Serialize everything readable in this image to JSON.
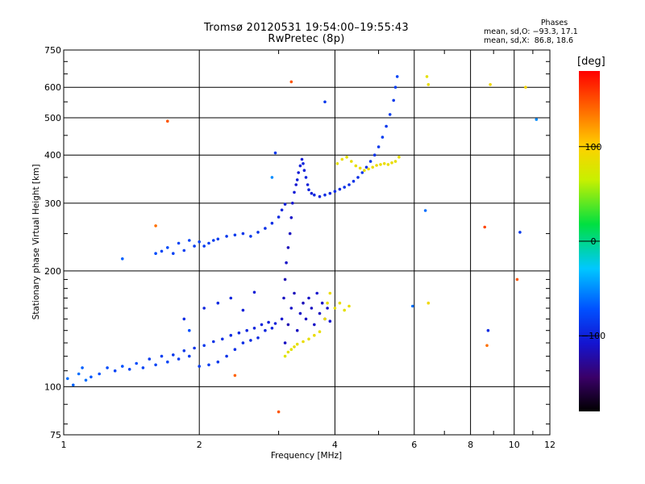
{
  "header": {
    "title_line1": "Tromsø 20120531 19:54:00–19:55:43",
    "title_line2": "RwPretec (8p)"
  },
  "phases_box": {
    "title": "Phases",
    "line_o": "mean, sd,O: −93.3, 17.1",
    "line_x": "mean, sd,X:  86.8, 18.6"
  },
  "colorbar": {
    "unit_label": "[deg]",
    "ticks": [
      {
        "value": 100,
        "label": "100"
      },
      {
        "value": 0,
        "label": "0"
      },
      {
        "value": -100,
        "label": "−100"
      }
    ],
    "range": [
      -180,
      180
    ]
  },
  "chart_data": {
    "type": "scatter",
    "xlabel": "Frequency [MHz]",
    "ylabel": "Stationary phase Virtual Height [km]",
    "x_scale": "log",
    "y_scale": "log",
    "xlim": [
      1,
      12
    ],
    "ylim": [
      75,
      750
    ],
    "x_ticks": [
      {
        "value": 1,
        "label": "1"
      },
      {
        "value": 2,
        "label": "2"
      },
      {
        "value": 4,
        "label": "4"
      },
      {
        "value": 6,
        "label": "6"
      },
      {
        "value": 8,
        "label": "8"
      },
      {
        "value": 10,
        "label": "10"
      },
      {
        "value": 12,
        "label": "12"
      }
    ],
    "y_ticks": [
      {
        "value": 75,
        "label": "75"
      },
      {
        "value": 100,
        "label": "100"
      },
      {
        "value": 200,
        "label": "200"
      },
      {
        "value": 300,
        "label": "300"
      },
      {
        "value": 400,
        "label": "400"
      },
      {
        "value": 500,
        "label": "500"
      },
      {
        "value": 600,
        "label": "600"
      },
      {
        "value": 750,
        "label": "750"
      }
    ],
    "grid": true,
    "color_value": "phase in degrees (colorbar scale)",
    "series": [
      {
        "points": [
          [
            1.02,
            105,
            -80
          ],
          [
            1.05,
            101,
            -85
          ],
          [
            1.08,
            108,
            -80
          ],
          [
            1.1,
            112,
            -85
          ],
          [
            1.12,
            104,
            -80
          ],
          [
            1.15,
            106,
            -88
          ],
          [
            1.2,
            108,
            -90
          ],
          [
            1.25,
            112,
            -92
          ],
          [
            1.3,
            110,
            -95
          ],
          [
            1.35,
            113,
            -90
          ],
          [
            1.4,
            111,
            -95
          ],
          [
            1.45,
            115,
            -92
          ],
          [
            1.5,
            112,
            -95
          ],
          [
            1.55,
            118,
            -98
          ],
          [
            1.6,
            114,
            -95
          ],
          [
            1.65,
            120,
            -97
          ],
          [
            1.7,
            116,
            -95
          ],
          [
            1.75,
            121,
            -100
          ],
          [
            1.8,
            118,
            -98
          ],
          [
            1.85,
            124,
            -100
          ],
          [
            1.9,
            120,
            -98
          ],
          [
            1.95,
            126,
            -102
          ],
          [
            2.0,
            113,
            -98
          ],
          [
            2.05,
            128,
            -100
          ],
          [
            2.1,
            114,
            -98
          ],
          [
            2.15,
            131,
            -102
          ],
          [
            2.2,
            116,
            -100
          ],
          [
            2.25,
            133,
            -104
          ],
          [
            2.3,
            120,
            -102
          ],
          [
            2.35,
            136,
            -105
          ],
          [
            2.4,
            125,
            -103
          ],
          [
            2.45,
            138,
            -106
          ],
          [
            2.5,
            130,
            -104
          ],
          [
            2.55,
            140,
            -107
          ],
          [
            2.6,
            132,
            -105
          ],
          [
            2.65,
            142,
            -108
          ],
          [
            2.7,
            134,
            -106
          ],
          [
            2.75,
            145,
            -108
          ],
          [
            2.8,
            140,
            -107
          ],
          [
            2.85,
            147,
            -110
          ],
          [
            2.9,
            142,
            -108
          ],
          [
            2.95,
            146,
            -110
          ],
          [
            1.85,
            150,
            -105
          ],
          [
            2.05,
            160,
            -108
          ],
          [
            2.2,
            165,
            -106
          ],
          [
            2.35,
            170,
            -108
          ],
          [
            2.5,
            158,
            -110
          ],
          [
            2.65,
            176,
            -112
          ]
        ]
      },
      {
        "points": [
          [
            1.6,
            222,
            -92
          ],
          [
            1.65,
            225,
            -95
          ],
          [
            1.7,
            230,
            -93
          ],
          [
            1.75,
            222,
            -96
          ],
          [
            1.8,
            236,
            -95
          ],
          [
            1.85,
            226,
            -97
          ],
          [
            1.9,
            240,
            -95
          ],
          [
            1.95,
            232,
            -98
          ],
          [
            2.0,
            238,
            -96
          ],
          [
            2.05,
            232,
            -98
          ],
          [
            2.1,
            236,
            -97
          ],
          [
            2.15,
            240,
            -99
          ],
          [
            2.2,
            242,
            -98
          ],
          [
            2.3,
            246,
            -100
          ],
          [
            2.4,
            248,
            -99
          ],
          [
            2.5,
            250,
            -101
          ],
          [
            2.6,
            246,
            -100
          ],
          [
            2.7,
            252,
            -102
          ],
          [
            2.8,
            258,
            -103
          ],
          [
            2.9,
            266,
            -104
          ],
          [
            3.0,
            276,
            -106
          ],
          [
            3.05,
            288,
            -108
          ],
          [
            3.1,
            298,
            -110
          ]
        ]
      },
      {
        "points": [
          [
            3.05,
            150,
            -115
          ],
          [
            3.08,
            170,
            -120
          ],
          [
            3.1,
            190,
            -125
          ],
          [
            3.12,
            210,
            -118
          ],
          [
            3.15,
            230,
            -122
          ],
          [
            3.18,
            250,
            -120
          ],
          [
            3.2,
            275,
            -118
          ],
          [
            3.22,
            300,
            -115
          ],
          [
            3.25,
            320,
            -112
          ],
          [
            3.28,
            335,
            -114
          ],
          [
            3.3,
            345,
            -110
          ],
          [
            3.32,
            360,
            -112
          ],
          [
            3.35,
            375,
            -110
          ],
          [
            3.38,
            390,
            -112
          ],
          [
            3.4,
            380,
            -108
          ],
          [
            3.42,
            365,
            -110
          ],
          [
            3.45,
            350,
            -108
          ],
          [
            3.48,
            335,
            -110
          ],
          [
            3.5,
            325,
            -108
          ],
          [
            3.55,
            318,
            -110
          ],
          [
            3.6,
            315,
            -106
          ],
          [
            3.7,
            312,
            -108
          ],
          [
            3.8,
            315,
            -105
          ],
          [
            3.9,
            318,
            -107
          ],
          [
            4.0,
            322,
            -104
          ],
          [
            4.1,
            326,
            -106
          ],
          [
            4.2,
            330,
            -103
          ],
          [
            4.3,
            335,
            -105
          ],
          [
            4.4,
            342,
            -102
          ],
          [
            4.5,
            350,
            -104
          ],
          [
            4.6,
            360,
            -101
          ],
          [
            4.7,
            372,
            -103
          ],
          [
            4.8,
            385,
            -100
          ],
          [
            4.9,
            400,
            -102
          ],
          [
            5.0,
            420,
            -100
          ],
          [
            5.1,
            445,
            -98
          ],
          [
            5.2,
            475,
            -100
          ],
          [
            5.3,
            510,
            -98
          ],
          [
            5.4,
            555,
            -100
          ],
          [
            5.45,
            600,
            -97
          ],
          [
            5.5,
            640,
            -95
          ]
        ]
      },
      {
        "points": [
          [
            3.1,
            130,
            -120
          ],
          [
            3.15,
            145,
            -125
          ],
          [
            3.2,
            160,
            -118
          ],
          [
            3.25,
            175,
            -122
          ],
          [
            3.3,
            140,
            -120
          ],
          [
            3.35,
            155,
            -118
          ],
          [
            3.4,
            165,
            -122
          ],
          [
            3.45,
            150,
            -120
          ],
          [
            3.5,
            170,
            -118
          ],
          [
            3.55,
            160,
            -120
          ],
          [
            3.6,
            145,
            -118
          ],
          [
            3.65,
            175,
            -116
          ],
          [
            3.7,
            155,
            -120
          ],
          [
            3.75,
            165,
            -118
          ],
          [
            3.8,
            150,
            -116
          ],
          [
            3.85,
            160,
            -118
          ],
          [
            3.9,
            148,
            -115
          ]
        ]
      },
      {
        "points": [
          [
            3.1,
            120,
            75
          ],
          [
            3.15,
            123,
            80
          ],
          [
            3.2,
            125,
            78
          ],
          [
            3.25,
            127,
            82
          ],
          [
            3.3,
            129,
            80
          ],
          [
            3.4,
            131,
            85
          ],
          [
            3.5,
            133,
            82
          ],
          [
            3.6,
            136,
            85
          ],
          [
            3.7,
            139,
            83
          ],
          [
            3.8,
            150,
            86
          ],
          [
            3.85,
            165,
            84
          ],
          [
            3.9,
            175,
            86
          ],
          [
            4.0,
            160,
            82
          ],
          [
            4.1,
            165,
            85
          ],
          [
            4.2,
            158,
            80
          ],
          [
            4.3,
            162,
            84
          ]
        ]
      },
      {
        "points": [
          [
            4.05,
            380,
            82
          ],
          [
            4.15,
            390,
            85
          ],
          [
            4.25,
            395,
            80
          ],
          [
            4.35,
            385,
            84
          ],
          [
            4.45,
            375,
            82
          ],
          [
            4.55,
            370,
            86
          ],
          [
            4.65,
            365,
            84
          ],
          [
            4.75,
            368,
            88
          ],
          [
            4.85,
            372,
            85
          ],
          [
            4.95,
            376,
            87
          ],
          [
            5.05,
            378,
            84
          ],
          [
            5.15,
            380,
            86
          ],
          [
            5.25,
            378,
            83
          ],
          [
            5.35,
            382,
            85
          ],
          [
            5.45,
            385,
            82
          ],
          [
            5.55,
            395,
            84
          ]
        ]
      },
      {
        "points": [
          [
            6.4,
            640,
            80
          ],
          [
            6.45,
            610,
            85
          ],
          [
            8.85,
            610,
            90
          ],
          [
            10.6,
            600,
            92
          ],
          [
            3.2,
            620,
            150
          ],
          [
            1.7,
            490,
            150
          ],
          [
            1.6,
            262,
            140
          ],
          [
            8.6,
            260,
            155
          ],
          [
            10.15,
            190,
            150
          ],
          [
            8.7,
            128,
            140
          ],
          [
            3.0,
            86,
            150
          ],
          [
            2.4,
            107,
            145
          ],
          [
            11.2,
            495,
            -70
          ],
          [
            10.3,
            252,
            -100
          ],
          [
            8.75,
            140,
            -105
          ],
          [
            6.35,
            287,
            -80
          ],
          [
            6.45,
            165,
            90
          ],
          [
            5.95,
            162,
            -80
          ],
          [
            3.8,
            550,
            -100
          ],
          [
            2.95,
            405,
            -100
          ],
          [
            2.9,
            350,
            -70
          ],
          [
            1.35,
            215,
            -85
          ],
          [
            1.9,
            140,
            -90
          ]
        ]
      }
    ]
  }
}
